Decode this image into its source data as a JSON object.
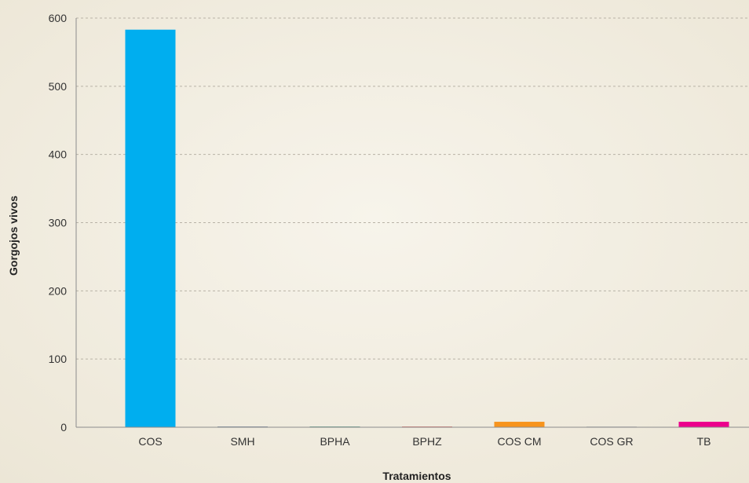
{
  "chart_data": {
    "type": "bar",
    "xlabel": "Tratamientos",
    "ylabel": "Gorgojos vivos",
    "ylim": [
      0,
      600
    ],
    "yticks": [
      0,
      100,
      200,
      300,
      400,
      500,
      600
    ],
    "categories": [
      "COS",
      "SMH",
      "BPHA",
      "BPHZ",
      "COS CM",
      "COS GR",
      "TB"
    ],
    "values": [
      583,
      1,
      1,
      1,
      8,
      1,
      8
    ],
    "colors": [
      "#00aeef",
      "#5b6f8f",
      "#3f8f7a",
      "#d9534f",
      "#f7941d",
      "#b5b5b5",
      "#ec008c"
    ],
    "grid": true
  }
}
